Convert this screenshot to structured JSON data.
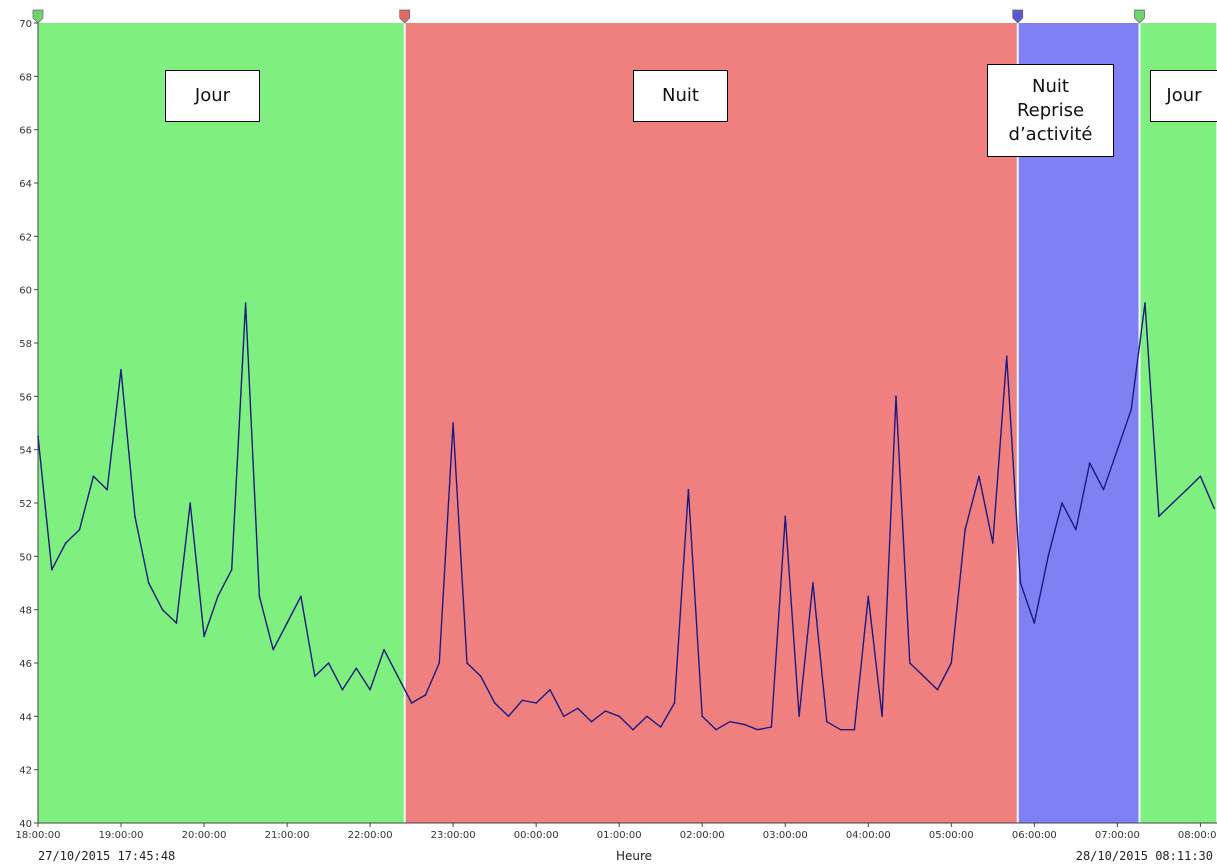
{
  "chart_data": {
    "type": "line",
    "xlabel": "Heure",
    "ylabel": "",
    "ylim": [
      40,
      70
    ],
    "y_ticks": [
      "40",
      "42",
      "44",
      "46",
      "48",
      "50",
      "52",
      "54",
      "56",
      "58",
      "60",
      "62",
      "64",
      "66",
      "68",
      "70"
    ],
    "x_range_hours": [
      0.0,
      14.2
    ],
    "x_ticks": [
      "18:00:00",
      "19:00:00",
      "20:00:00",
      "21:00:00",
      "22:00:00",
      "23:00:00",
      "00:00:00",
      "01:00:00",
      "02:00:00",
      "03:00:00",
      "04:00:00",
      "05:00:00",
      "06:00:00",
      "07:00:00",
      "08:00:00"
    ],
    "start_stamp": "27/10/2015 17:45:48",
    "end_stamp": "28/10/2015 08:11:30",
    "line_color": "#1a1a80",
    "periods": [
      {
        "label": "Jour",
        "start": "18:00:00",
        "end": "22:25:00",
        "color": "#7fef7f",
        "marker_color": "#6fd46f"
      },
      {
        "label": "Nuit",
        "start": "22:25:00",
        "end": "05:48:00",
        "color": "#f08080",
        "marker_color": "#e06a6a"
      },
      {
        "label": "Nuit Reprise d’activité",
        "label_lines": [
          "Nuit",
          "Reprise",
          "d’activité"
        ],
        "start": "05:48:00",
        "end": "07:16:00",
        "color": "#8080f5",
        "marker_color": "#5a5ad0"
      },
      {
        "label": "Jour",
        "start": "07:16:00",
        "end": "08:11:30",
        "color": "#7fef7f",
        "marker_color": "#6fd46f"
      }
    ],
    "series": [
      {
        "x": [
          "18:00",
          "18:10",
          "18:20",
          "18:30",
          "18:40",
          "18:50",
          "19:00",
          "19:10",
          "19:20",
          "19:30",
          "19:40",
          "19:50",
          "20:00",
          "20:10",
          "20:20",
          "20:30",
          "20:40",
          "20:50",
          "21:00",
          "21:10",
          "21:20",
          "21:30",
          "21:40",
          "21:50",
          "22:00",
          "22:10",
          "22:20",
          "22:30",
          "22:40",
          "22:50",
          "23:00",
          "23:10",
          "23:20",
          "23:30",
          "23:40",
          "23:50",
          "00:00",
          "00:10",
          "00:20",
          "00:30",
          "00:40",
          "00:50",
          "01:00",
          "01:10",
          "01:20",
          "01:30",
          "01:40",
          "01:50",
          "02:00",
          "02:10",
          "02:20",
          "02:30",
          "02:40",
          "02:50",
          "03:00",
          "03:10",
          "03:20",
          "03:30",
          "03:40",
          "03:50",
          "04:00",
          "04:10",
          "04:20",
          "04:30",
          "04:40",
          "04:50",
          "05:00",
          "05:10",
          "05:20",
          "05:30",
          "05:40",
          "05:50",
          "06:00",
          "06:10",
          "06:20",
          "06:30",
          "06:40",
          "06:50",
          "07:00",
          "07:10",
          "07:20",
          "07:30",
          "07:40",
          "07:50",
          "08:00",
          "08:10"
        ],
        "values": [
          54.5,
          49.5,
          50.5,
          51.0,
          53.0,
          52.5,
          57.0,
          51.5,
          49.0,
          48.0,
          47.5,
          52.0,
          47.0,
          48.5,
          49.5,
          59.5,
          48.5,
          46.5,
          47.5,
          48.5,
          45.5,
          46.0,
          45.0,
          45.8,
          45.0,
          46.5,
          45.5,
          44.5,
          44.8,
          46.0,
          55.0,
          46.0,
          45.5,
          44.5,
          44.0,
          44.6,
          44.5,
          45.0,
          44.0,
          44.3,
          43.8,
          44.2,
          44.0,
          43.5,
          44.0,
          43.6,
          44.5,
          52.5,
          44.0,
          43.5,
          43.8,
          43.7,
          43.5,
          43.6,
          51.5,
          44.0,
          49.0,
          43.8,
          43.5,
          43.5,
          48.5,
          44.0,
          56.0,
          46.0,
          45.5,
          45.0,
          46.0,
          51.0,
          53.0,
          50.5,
          57.5,
          49.0,
          47.5,
          50.0,
          52.0,
          51.0,
          53.5,
          52.5,
          54.0,
          55.5,
          59.5,
          51.5,
          52.0,
          52.5,
          53.0,
          51.8
        ]
      }
    ]
  }
}
